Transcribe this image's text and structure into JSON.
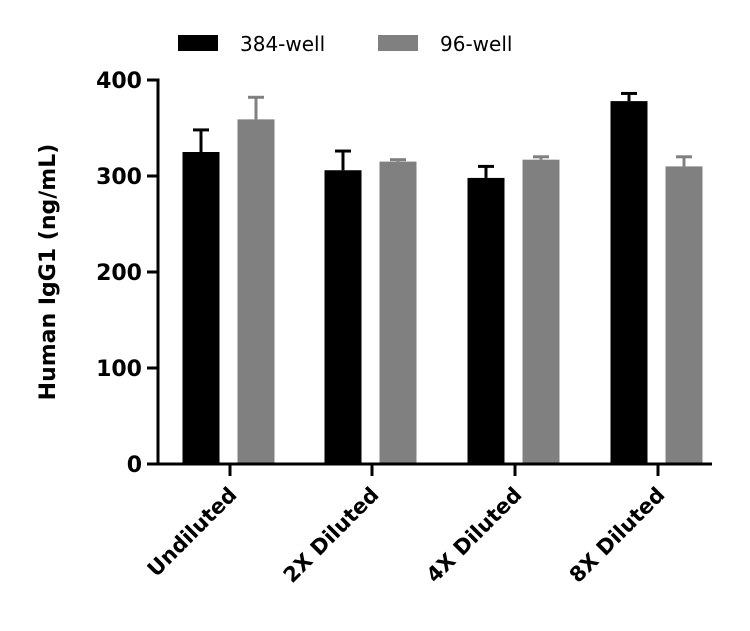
{
  "chart_data": {
    "type": "bar",
    "title": "",
    "xlabel": "",
    "ylabel": "Human IgG1 (ng/mL)",
    "ylim": [
      0,
      400
    ],
    "yticks": [
      0,
      100,
      200,
      300,
      400
    ],
    "grid": false,
    "legend_position": "top",
    "categories": [
      "Undiluted",
      "2X Diluted",
      "4X Diluted",
      "8X Diluted"
    ],
    "series": [
      {
        "name": "384-well",
        "color": "#000000",
        "values": [
          325,
          306,
          298,
          378
        ],
        "errors": [
          23,
          20,
          12,
          8
        ]
      },
      {
        "name": "96-well",
        "color": "#808080",
        "values": [
          359,
          315,
          317,
          310
        ],
        "errors": [
          23,
          2,
          3,
          10
        ]
      }
    ]
  }
}
